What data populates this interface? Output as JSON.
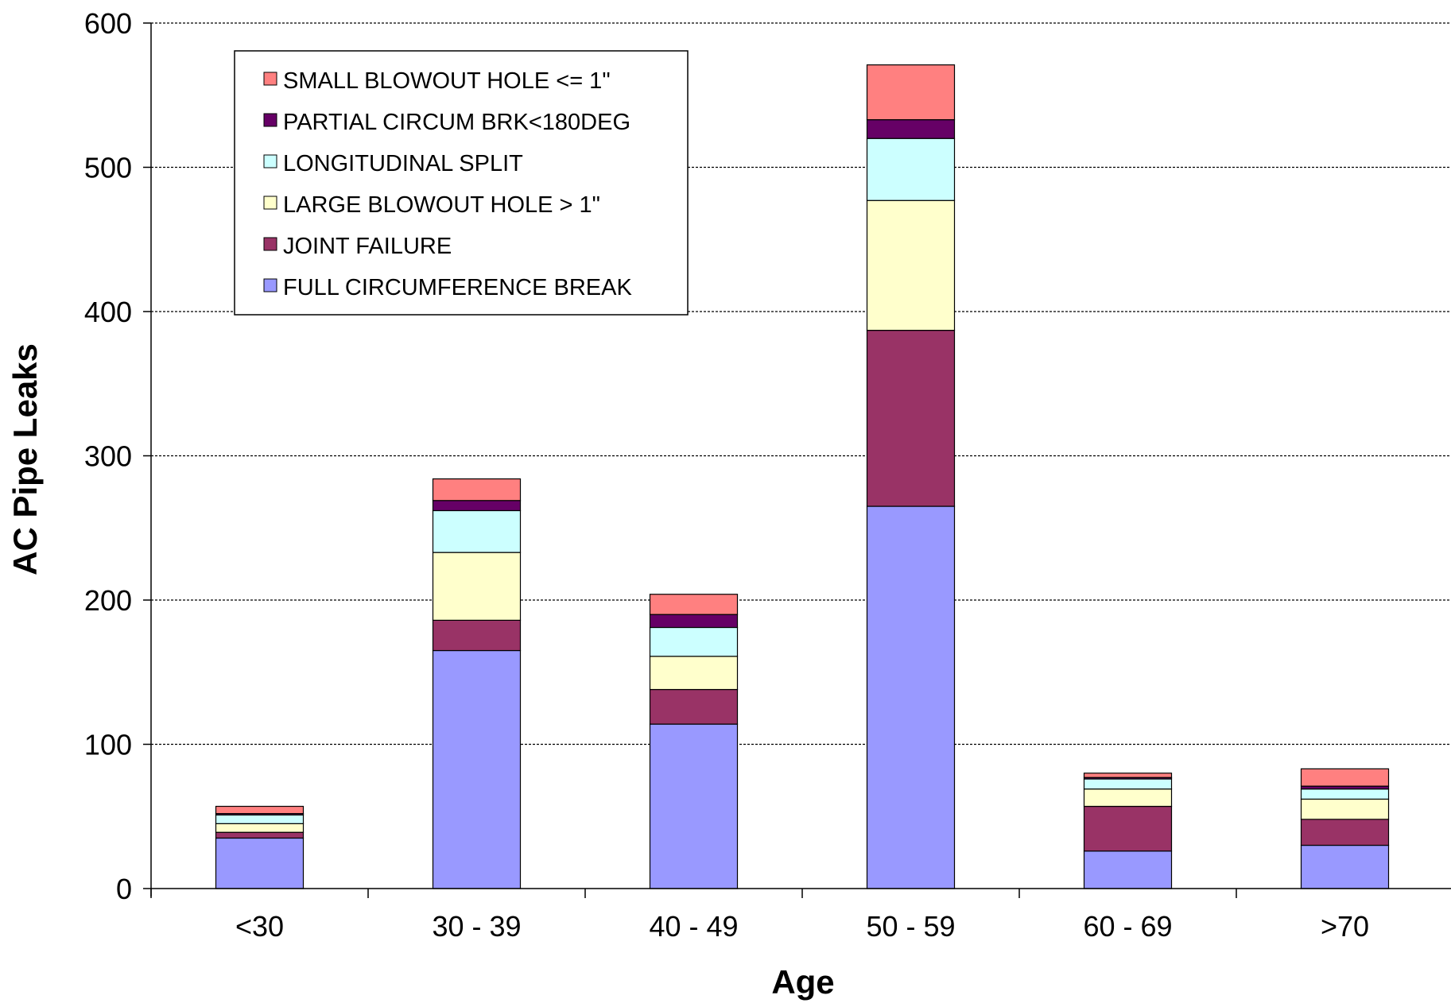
{
  "chart_data": {
    "type": "bar",
    "stacked": true,
    "title": "",
    "xlabel": "Age",
    "ylabel": "AC Pipe Leaks",
    "ylim": [
      0,
      600
    ],
    "yticks": [
      0,
      100,
      200,
      300,
      400,
      500,
      600
    ],
    "grid": true,
    "legend_position": "top-left",
    "categories": [
      "<30",
      "30 - 39",
      "40 - 49",
      "50 - 59",
      "60 - 69",
      ">70"
    ],
    "series": [
      {
        "name": "FULL CIRCUMFERENCE BREAK",
        "color": "#9999ff",
        "values": [
          35,
          165,
          114,
          265,
          26,
          30
        ]
      },
      {
        "name": "JOINT FAILURE",
        "color": "#993366",
        "values": [
          4,
          21,
          24,
          122,
          31,
          18
        ]
      },
      {
        "name": "LARGE BLOWOUT HOLE > 1\"",
        "color": "#ffffcc",
        "values": [
          6,
          47,
          23,
          90,
          12,
          14
        ]
      },
      {
        "name": "LONGITUDINAL SPLIT",
        "color": "#ccffff",
        "values": [
          6,
          29,
          20,
          43,
          7,
          7
        ]
      },
      {
        "name": "PARTIAL CIRCUM BRK<180DEG",
        "color": "#660066",
        "values": [
          1,
          7,
          9,
          13,
          1,
          2
        ]
      },
      {
        "name": "SMALL BLOWOUT HOLE <= 1\"",
        "color": "#ff8080",
        "values": [
          5,
          15,
          14,
          38,
          3,
          12
        ]
      }
    ]
  }
}
